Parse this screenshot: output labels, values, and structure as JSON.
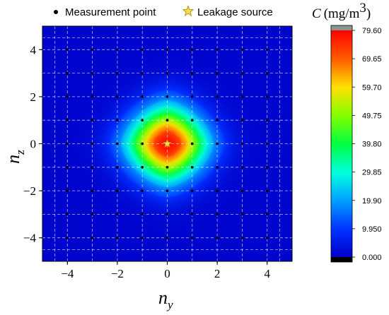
{
  "chart_data": {
    "type": "heatmap",
    "title": "",
    "xlabel": {
      "base": "n",
      "sub": "y"
    },
    "ylabel": {
      "base": "n",
      "sub": "z"
    },
    "xlim": [
      -5,
      5
    ],
    "ylim": [
      -5,
      5
    ],
    "xticks": [
      -4,
      -2,
      0,
      2,
      4
    ],
    "yticks": [
      -4,
      -2,
      0,
      2,
      4
    ],
    "xtick_labels": [
      "−4",
      "−2",
      "0",
      "2",
      "4"
    ],
    "ytick_labels": [
      "−4",
      "−2",
      "0",
      "2",
      "4"
    ],
    "grid": true,
    "legend": {
      "placement": "top",
      "items": [
        {
          "label": "Measurement point",
          "marker": "dot",
          "color": "#000000"
        },
        {
          "label": "Leakage source",
          "marker": "star",
          "color": "#f3e04a"
        }
      ]
    },
    "colorbar": {
      "title_symbol": "C",
      "title_unit": "(mg/m",
      "title_unit_sup": "3",
      "title_close": ")",
      "min": 0,
      "max": 79.6,
      "tick_labels": [
        "79.60",
        "69.65",
        "59.70",
        "49.75",
        "39.80",
        "29.85",
        "19.90",
        "9.950",
        "0.000"
      ],
      "tick_values": [
        79.6,
        69.65,
        59.7,
        49.75,
        39.8,
        29.85,
        19.9,
        9.95,
        0.0
      ],
      "over_color": "#8c968c",
      "under_color": "#000000"
    },
    "measurement_points": {
      "y_values": [
        -4,
        -3,
        -2,
        -1,
        0,
        1,
        2,
        3,
        4
      ],
      "z_values": [
        -4,
        -3,
        -2,
        -1,
        0,
        1,
        2,
        3,
        4
      ],
      "marker_color": "#000000"
    },
    "leakage_source": {
      "y": 0,
      "z": 0
    },
    "concentration_field": {
      "unit": "mg/m3",
      "peak": 79.6,
      "background": 1.0,
      "shape": "diamond-like plume centered at source",
      "contour_levels": [
        9.95,
        19.9,
        29.85,
        39.8,
        49.75,
        59.7,
        69.65
      ]
    }
  }
}
